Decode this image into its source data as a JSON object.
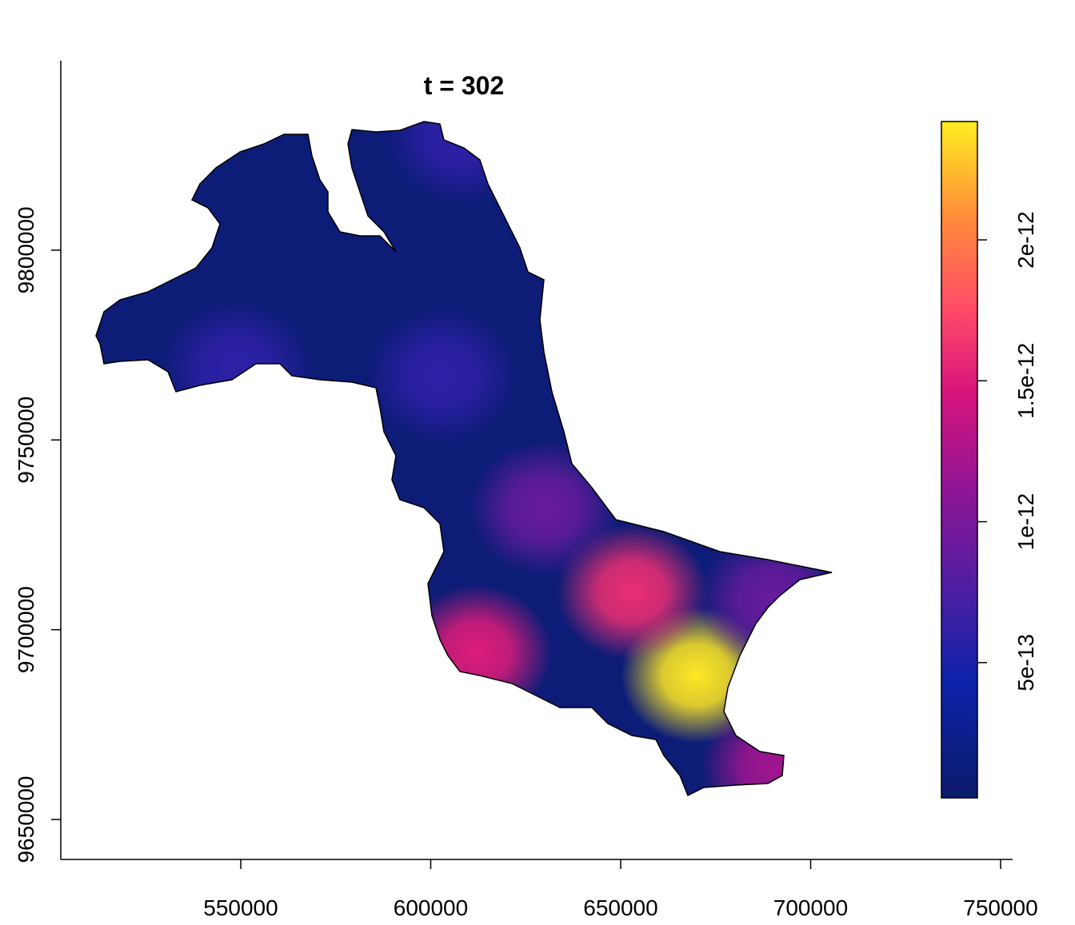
{
  "chart_data": {
    "type": "raster-map",
    "title": "t = 302",
    "xlim": [
      502632,
      753158
    ],
    "ylim": [
      9639474,
      9849900
    ],
    "xticks": [
      550000,
      600000,
      650000,
      700000,
      750000
    ],
    "yticks": [
      9650000,
      9700000,
      9750000,
      9800000
    ],
    "colorbar": {
      "lim": [
        2e-14,
        2.42e-12
      ],
      "ticks": [
        5e-13,
        1e-12,
        1.5e-12,
        2e-12
      ]
    },
    "background_value": 1e-13,
    "hotspots": [
      {
        "x": 670000,
        "y": 9688000,
        "value": 2.4e-12
      },
      {
        "x": 653000,
        "y": 9710000,
        "value": 1.6e-12
      },
      {
        "x": 612000,
        "y": 9694000,
        "value": 1.5e-12
      },
      {
        "x": 691000,
        "y": 9664000,
        "value": 1.2e-12
      },
      {
        "x": 630000,
        "y": 9732000,
        "value": 9e-13
      },
      {
        "x": 690000,
        "y": 9708000,
        "value": 9e-13
      },
      {
        "x": 603000,
        "y": 9767000,
        "value": 6e-13
      },
      {
        "x": 549000,
        "y": 9769000,
        "value": 6e-13
      },
      {
        "x": 608000,
        "y": 9830000,
        "value": 6e-13
      }
    ]
  }
}
